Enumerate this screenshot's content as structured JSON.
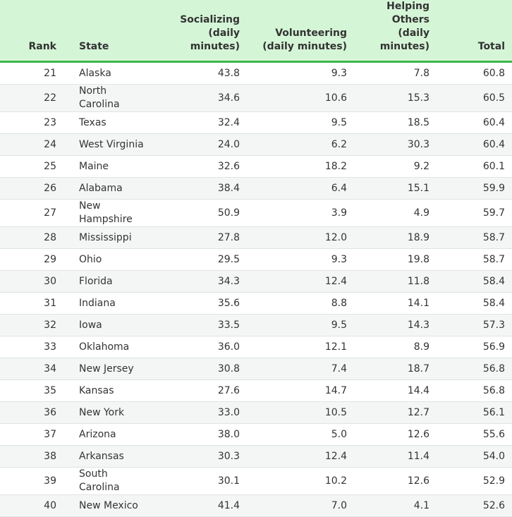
{
  "headers": {
    "rank": "Rank",
    "state": "State",
    "socializing": [
      "Socializing",
      "(daily",
      "minutes)"
    ],
    "volunteering": [
      "Volunteering",
      "(daily minutes)"
    ],
    "helping": [
      "Helping",
      "Others",
      "(daily",
      "minutes)"
    ],
    "total": "Total"
  },
  "rows": [
    {
      "rank": "21",
      "state": "Alaska",
      "socializing": "43.8",
      "volunteering": "9.3",
      "helping": "7.8",
      "total": "60.8"
    },
    {
      "rank": "22",
      "state": "North Carolina",
      "socializing": "34.6",
      "volunteering": "10.6",
      "helping": "15.3",
      "total": "60.5"
    },
    {
      "rank": "23",
      "state": "Texas",
      "socializing": "32.4",
      "volunteering": "9.5",
      "helping": "18.5",
      "total": "60.4"
    },
    {
      "rank": "24",
      "state": "West Virginia",
      "socializing": "24.0",
      "volunteering": "6.2",
      "helping": "30.3",
      "total": "60.4"
    },
    {
      "rank": "25",
      "state": "Maine",
      "socializing": "32.6",
      "volunteering": "18.2",
      "helping": "9.2",
      "total": "60.1"
    },
    {
      "rank": "26",
      "state": "Alabama",
      "socializing": "38.4",
      "volunteering": "6.4",
      "helping": "15.1",
      "total": "59.9"
    },
    {
      "rank": "27",
      "state": "New Hampshire",
      "socializing": "50.9",
      "volunteering": "3.9",
      "helping": "4.9",
      "total": "59.7"
    },
    {
      "rank": "28",
      "state": "Mississippi",
      "socializing": "27.8",
      "volunteering": "12.0",
      "helping": "18.9",
      "total": "58.7"
    },
    {
      "rank": "29",
      "state": "Ohio",
      "socializing": "29.5",
      "volunteering": "9.3",
      "helping": "19.8",
      "total": "58.7"
    },
    {
      "rank": "30",
      "state": "Florida",
      "socializing": "34.3",
      "volunteering": "12.4",
      "helping": "11.8",
      "total": "58.4"
    },
    {
      "rank": "31",
      "state": "Indiana",
      "socializing": "35.6",
      "volunteering": "8.8",
      "helping": "14.1",
      "total": "58.4"
    },
    {
      "rank": "32",
      "state": "Iowa",
      "socializing": "33.5",
      "volunteering": "9.5",
      "helping": "14.3",
      "total": "57.3"
    },
    {
      "rank": "33",
      "state": "Oklahoma",
      "socializing": "36.0",
      "volunteering": "12.1",
      "helping": "8.9",
      "total": "56.9"
    },
    {
      "rank": "34",
      "state": "New Jersey",
      "socializing": "30.8",
      "volunteering": "7.4",
      "helping": "18.7",
      "total": "56.8"
    },
    {
      "rank": "35",
      "state": "Kansas",
      "socializing": "27.6",
      "volunteering": "14.7",
      "helping": "14.4",
      "total": "56.8"
    },
    {
      "rank": "36",
      "state": "New York",
      "socializing": "33.0",
      "volunteering": "10.5",
      "helping": "12.7",
      "total": "56.1"
    },
    {
      "rank": "37",
      "state": "Arizona",
      "socializing": "38.0",
      "volunteering": "5.0",
      "helping": "12.6",
      "total": "55.6"
    },
    {
      "rank": "38",
      "state": "Arkansas",
      "socializing": "30.3",
      "volunteering": "12.4",
      "helping": "11.4",
      "total": "54.0"
    },
    {
      "rank": "39",
      "state": "South Carolina",
      "socializing": "30.1",
      "volunteering": "10.2",
      "helping": "12.6",
      "total": "52.9"
    },
    {
      "rank": "40",
      "state": "New Mexico",
      "socializing": "41.4",
      "volunteering": "7.0",
      "helping": "4.1",
      "total": "52.6"
    }
  ],
  "colors": {
    "header_bg": "#d5f5d7",
    "header_rule": "#3cb64c",
    "stripe": "#f4f6f6",
    "row_rule": "#dfe3e3",
    "text": "#333333"
  }
}
